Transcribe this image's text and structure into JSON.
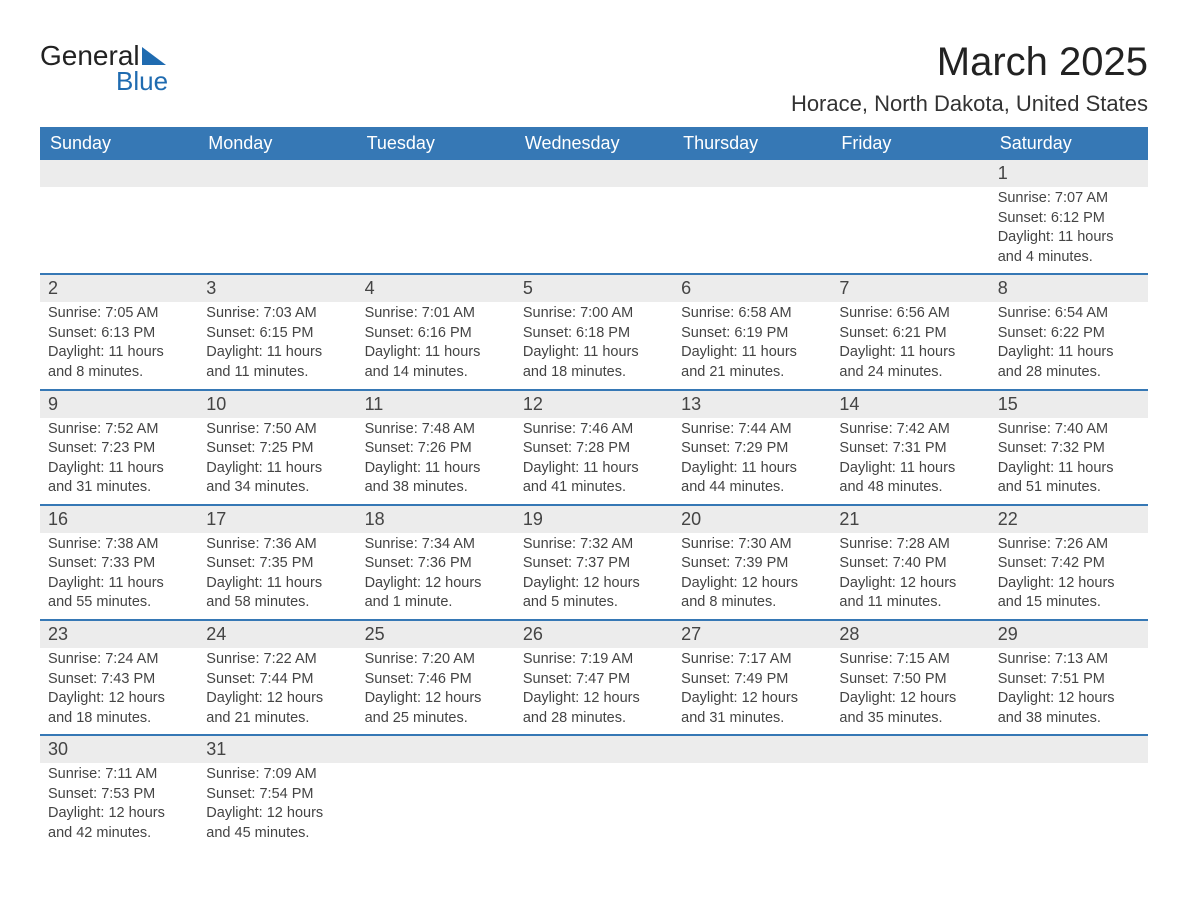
{
  "logo": {
    "text1": "General",
    "text2": "Blue"
  },
  "title": "March 2025",
  "location": "Horace, North Dakota, United States",
  "colors": {
    "header_bg": "#3678b5",
    "header_text": "#ffffff",
    "daynum_bg": "#ececec",
    "border": "#3678b5",
    "logo_blue": "#1f6bb0",
    "text": "#444444"
  },
  "day_headers": [
    "Sunday",
    "Monday",
    "Tuesday",
    "Wednesday",
    "Thursday",
    "Friday",
    "Saturday"
  ],
  "weeks": [
    [
      {
        "num": "",
        "sunrise": "",
        "sunset": "",
        "daylight1": "",
        "daylight2": ""
      },
      {
        "num": "",
        "sunrise": "",
        "sunset": "",
        "daylight1": "",
        "daylight2": ""
      },
      {
        "num": "",
        "sunrise": "",
        "sunset": "",
        "daylight1": "",
        "daylight2": ""
      },
      {
        "num": "",
        "sunrise": "",
        "sunset": "",
        "daylight1": "",
        "daylight2": ""
      },
      {
        "num": "",
        "sunrise": "",
        "sunset": "",
        "daylight1": "",
        "daylight2": ""
      },
      {
        "num": "",
        "sunrise": "",
        "sunset": "",
        "daylight1": "",
        "daylight2": ""
      },
      {
        "num": "1",
        "sunrise": "Sunrise: 7:07 AM",
        "sunset": "Sunset: 6:12 PM",
        "daylight1": "Daylight: 11 hours",
        "daylight2": "and 4 minutes."
      }
    ],
    [
      {
        "num": "2",
        "sunrise": "Sunrise: 7:05 AM",
        "sunset": "Sunset: 6:13 PM",
        "daylight1": "Daylight: 11 hours",
        "daylight2": "and 8 minutes."
      },
      {
        "num": "3",
        "sunrise": "Sunrise: 7:03 AM",
        "sunset": "Sunset: 6:15 PM",
        "daylight1": "Daylight: 11 hours",
        "daylight2": "and 11 minutes."
      },
      {
        "num": "4",
        "sunrise": "Sunrise: 7:01 AM",
        "sunset": "Sunset: 6:16 PM",
        "daylight1": "Daylight: 11 hours",
        "daylight2": "and 14 minutes."
      },
      {
        "num": "5",
        "sunrise": "Sunrise: 7:00 AM",
        "sunset": "Sunset: 6:18 PM",
        "daylight1": "Daylight: 11 hours",
        "daylight2": "and 18 minutes."
      },
      {
        "num": "6",
        "sunrise": "Sunrise: 6:58 AM",
        "sunset": "Sunset: 6:19 PM",
        "daylight1": "Daylight: 11 hours",
        "daylight2": "and 21 minutes."
      },
      {
        "num": "7",
        "sunrise": "Sunrise: 6:56 AM",
        "sunset": "Sunset: 6:21 PM",
        "daylight1": "Daylight: 11 hours",
        "daylight2": "and 24 minutes."
      },
      {
        "num": "8",
        "sunrise": "Sunrise: 6:54 AM",
        "sunset": "Sunset: 6:22 PM",
        "daylight1": "Daylight: 11 hours",
        "daylight2": "and 28 minutes."
      }
    ],
    [
      {
        "num": "9",
        "sunrise": "Sunrise: 7:52 AM",
        "sunset": "Sunset: 7:23 PM",
        "daylight1": "Daylight: 11 hours",
        "daylight2": "and 31 minutes."
      },
      {
        "num": "10",
        "sunrise": "Sunrise: 7:50 AM",
        "sunset": "Sunset: 7:25 PM",
        "daylight1": "Daylight: 11 hours",
        "daylight2": "and 34 minutes."
      },
      {
        "num": "11",
        "sunrise": "Sunrise: 7:48 AM",
        "sunset": "Sunset: 7:26 PM",
        "daylight1": "Daylight: 11 hours",
        "daylight2": "and 38 minutes."
      },
      {
        "num": "12",
        "sunrise": "Sunrise: 7:46 AM",
        "sunset": "Sunset: 7:28 PM",
        "daylight1": "Daylight: 11 hours",
        "daylight2": "and 41 minutes."
      },
      {
        "num": "13",
        "sunrise": "Sunrise: 7:44 AM",
        "sunset": "Sunset: 7:29 PM",
        "daylight1": "Daylight: 11 hours",
        "daylight2": "and 44 minutes."
      },
      {
        "num": "14",
        "sunrise": "Sunrise: 7:42 AM",
        "sunset": "Sunset: 7:31 PM",
        "daylight1": "Daylight: 11 hours",
        "daylight2": "and 48 minutes."
      },
      {
        "num": "15",
        "sunrise": "Sunrise: 7:40 AM",
        "sunset": "Sunset: 7:32 PM",
        "daylight1": "Daylight: 11 hours",
        "daylight2": "and 51 minutes."
      }
    ],
    [
      {
        "num": "16",
        "sunrise": "Sunrise: 7:38 AM",
        "sunset": "Sunset: 7:33 PM",
        "daylight1": "Daylight: 11 hours",
        "daylight2": "and 55 minutes."
      },
      {
        "num": "17",
        "sunrise": "Sunrise: 7:36 AM",
        "sunset": "Sunset: 7:35 PM",
        "daylight1": "Daylight: 11 hours",
        "daylight2": "and 58 minutes."
      },
      {
        "num": "18",
        "sunrise": "Sunrise: 7:34 AM",
        "sunset": "Sunset: 7:36 PM",
        "daylight1": "Daylight: 12 hours",
        "daylight2": "and 1 minute."
      },
      {
        "num": "19",
        "sunrise": "Sunrise: 7:32 AM",
        "sunset": "Sunset: 7:37 PM",
        "daylight1": "Daylight: 12 hours",
        "daylight2": "and 5 minutes."
      },
      {
        "num": "20",
        "sunrise": "Sunrise: 7:30 AM",
        "sunset": "Sunset: 7:39 PM",
        "daylight1": "Daylight: 12 hours",
        "daylight2": "and 8 minutes."
      },
      {
        "num": "21",
        "sunrise": "Sunrise: 7:28 AM",
        "sunset": "Sunset: 7:40 PM",
        "daylight1": "Daylight: 12 hours",
        "daylight2": "and 11 minutes."
      },
      {
        "num": "22",
        "sunrise": "Sunrise: 7:26 AM",
        "sunset": "Sunset: 7:42 PM",
        "daylight1": "Daylight: 12 hours",
        "daylight2": "and 15 minutes."
      }
    ],
    [
      {
        "num": "23",
        "sunrise": "Sunrise: 7:24 AM",
        "sunset": "Sunset: 7:43 PM",
        "daylight1": "Daylight: 12 hours",
        "daylight2": "and 18 minutes."
      },
      {
        "num": "24",
        "sunrise": "Sunrise: 7:22 AM",
        "sunset": "Sunset: 7:44 PM",
        "daylight1": "Daylight: 12 hours",
        "daylight2": "and 21 minutes."
      },
      {
        "num": "25",
        "sunrise": "Sunrise: 7:20 AM",
        "sunset": "Sunset: 7:46 PM",
        "daylight1": "Daylight: 12 hours",
        "daylight2": "and 25 minutes."
      },
      {
        "num": "26",
        "sunrise": "Sunrise: 7:19 AM",
        "sunset": "Sunset: 7:47 PM",
        "daylight1": "Daylight: 12 hours",
        "daylight2": "and 28 minutes."
      },
      {
        "num": "27",
        "sunrise": "Sunrise: 7:17 AM",
        "sunset": "Sunset: 7:49 PM",
        "daylight1": "Daylight: 12 hours",
        "daylight2": "and 31 minutes."
      },
      {
        "num": "28",
        "sunrise": "Sunrise: 7:15 AM",
        "sunset": "Sunset: 7:50 PM",
        "daylight1": "Daylight: 12 hours",
        "daylight2": "and 35 minutes."
      },
      {
        "num": "29",
        "sunrise": "Sunrise: 7:13 AM",
        "sunset": "Sunset: 7:51 PM",
        "daylight1": "Daylight: 12 hours",
        "daylight2": "and 38 minutes."
      }
    ],
    [
      {
        "num": "30",
        "sunrise": "Sunrise: 7:11 AM",
        "sunset": "Sunset: 7:53 PM",
        "daylight1": "Daylight: 12 hours",
        "daylight2": "and 42 minutes."
      },
      {
        "num": "31",
        "sunrise": "Sunrise: 7:09 AM",
        "sunset": "Sunset: 7:54 PM",
        "daylight1": "Daylight: 12 hours",
        "daylight2": "and 45 minutes."
      },
      {
        "num": "",
        "sunrise": "",
        "sunset": "",
        "daylight1": "",
        "daylight2": ""
      },
      {
        "num": "",
        "sunrise": "",
        "sunset": "",
        "daylight1": "",
        "daylight2": ""
      },
      {
        "num": "",
        "sunrise": "",
        "sunset": "",
        "daylight1": "",
        "daylight2": ""
      },
      {
        "num": "",
        "sunrise": "",
        "sunset": "",
        "daylight1": "",
        "daylight2": ""
      },
      {
        "num": "",
        "sunrise": "",
        "sunset": "",
        "daylight1": "",
        "daylight2": ""
      }
    ]
  ]
}
